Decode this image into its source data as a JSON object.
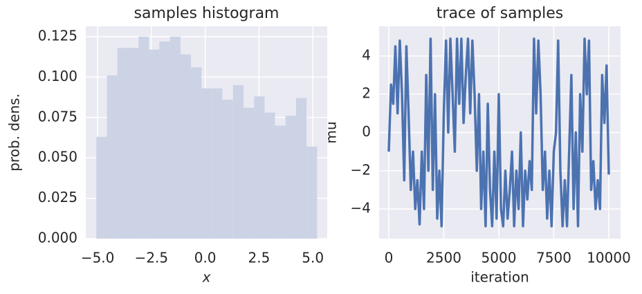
{
  "chart_data": [
    {
      "type": "histogram",
      "title": "samples histogram",
      "xlabel": "x",
      "ylabel": "prob. dens.",
      "bins": [
        -5.06,
        -4.57,
        -4.08,
        -3.59,
        -3.1,
        -2.62,
        -2.13,
        -1.64,
        -1.15,
        -0.66,
        -0.17,
        0.31,
        0.8,
        1.29,
        1.78,
        2.27,
        2.76,
        3.24,
        3.73,
        4.22,
        4.71,
        5.2
      ],
      "values": [
        0.063,
        0.101,
        0.118,
        0.118,
        0.125,
        0.117,
        0.122,
        0.125,
        0.114,
        0.106,
        0.093,
        0.093,
        0.086,
        0.095,
        0.081,
        0.088,
        0.078,
        0.07,
        0.076,
        0.087,
        0.057
      ],
      "color": "#ccd3e5",
      "background": "#eaeaf2",
      "grid": true,
      "xlim": [
        -5.55,
        5.67
      ],
      "ylim": [
        0,
        0.1314
      ],
      "xticks": [
        {
          "value": -5,
          "label": "−5.0"
        },
        {
          "value": -2.5,
          "label": "−2.5"
        },
        {
          "value": 0,
          "label": "0.0"
        },
        {
          "value": 2.5,
          "label": "2.5"
        },
        {
          "value": 5,
          "label": "5.0"
        }
      ],
      "yticks": [
        {
          "value": 0,
          "label": "0.000"
        },
        {
          "value": 0.025,
          "label": "0.025"
        },
        {
          "value": 0.05,
          "label": "0.050"
        },
        {
          "value": 0.075,
          "label": "0.075"
        },
        {
          "value": 0.1,
          "label": "0.100"
        },
        {
          "value": 0.125,
          "label": "0.125"
        }
      ]
    },
    {
      "type": "line",
      "title": "trace of samples",
      "xlabel": "iteration",
      "ylabel": "mu",
      "x": [
        0,
        100,
        200,
        300,
        400,
        500,
        600,
        700,
        800,
        900,
        1000,
        1100,
        1200,
        1300,
        1400,
        1500,
        1600,
        1700,
        1800,
        1900,
        2000,
        2100,
        2200,
        2300,
        2400,
        2500,
        2600,
        2700,
        2800,
        2900,
        3000,
        3100,
        3200,
        3300,
        3400,
        3500,
        3600,
        3700,
        3800,
        3900,
        4000,
        4100,
        4200,
        4300,
        4400,
        4500,
        4600,
        4700,
        4800,
        4900,
        5000,
        5100,
        5200,
        5300,
        5400,
        5500,
        5600,
        5700,
        5800,
        5900,
        6000,
        6100,
        6200,
        6300,
        6400,
        6500,
        6600,
        6700,
        6800,
        6900,
        7000,
        7100,
        7200,
        7300,
        7400,
        7500,
        7600,
        7700,
        7800,
        7900,
        8000,
        8100,
        8200,
        8300,
        8400,
        8500,
        8600,
        8700,
        8800,
        8900,
        9000,
        9100,
        9200,
        9300,
        9400,
        9500,
        9600,
        9700,
        9800,
        9900,
        10000
      ],
      "values": [
        -1,
        2.5,
        1.5,
        4.5,
        1,
        4.8,
        2,
        -2.5,
        4.5,
        1,
        -3,
        -1,
        -4,
        -2.5,
        -4.8,
        -1,
        -4,
        3,
        -2,
        4.9,
        -3,
        2,
        -4.5,
        -2,
        -4.9,
        1,
        4.8,
        0,
        4.9,
        2,
        -1,
        4.9,
        1.5,
        4.9,
        0.5,
        3,
        4.9,
        1,
        4.8,
        2,
        -2,
        2,
        -4,
        -1,
        -4.9,
        1.5,
        -3,
        -4.9,
        -1,
        -4.5,
        2,
        -4,
        -4.9,
        -2,
        -4.5,
        -3,
        -1,
        -4.9,
        -2,
        -4,
        0,
        -4.9,
        -2,
        -3.5,
        -1.5,
        -3,
        4.9,
        1,
        4.8,
        2,
        -3,
        -1,
        -4.5,
        -2,
        -4.9,
        -1,
        0,
        4.8,
        -2,
        -4.9,
        -2.5,
        -4.9,
        -1,
        3,
        -4,
        0,
        -4.9,
        2,
        -1,
        4.9,
        2,
        4.8,
        -3,
        -1.5,
        -4,
        -2.5,
        -4,
        3,
        0.5,
        3.5,
        -2.2
      ],
      "color": "#4c72b0",
      "background": "#eaeaf2",
      "grid": true,
      "xlim": [
        -440,
        10535
      ],
      "ylim": [
        -5.55,
        5.55
      ],
      "xticks": [
        0,
        2500,
        5000,
        7500,
        10000
      ],
      "yticks": [
        {
          "value": -4,
          "label": "−4"
        },
        {
          "value": -2,
          "label": "−2"
        },
        0,
        2,
        4
      ]
    }
  ]
}
